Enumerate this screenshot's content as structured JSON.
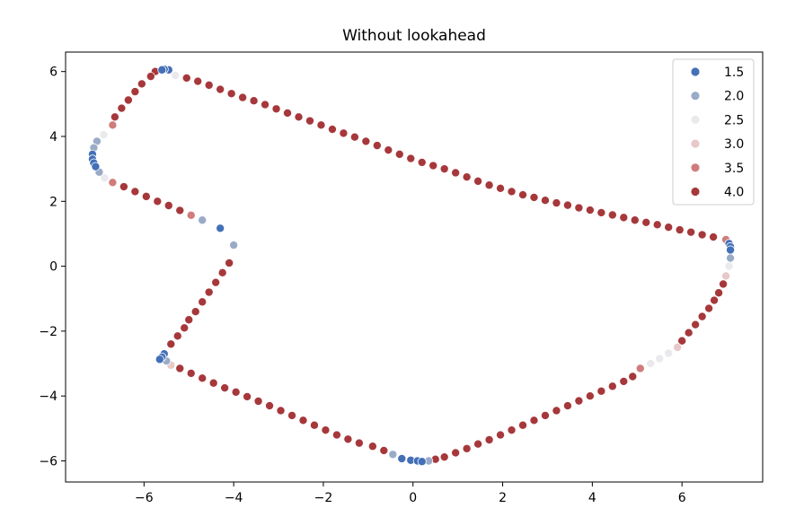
{
  "chart_data": {
    "type": "scatter",
    "title": "Without lookahead",
    "xlabel": "",
    "ylabel": "",
    "xlim": [
      -7.75,
      7.8
    ],
    "ylim": [
      -6.65,
      6.6
    ],
    "xticks": [
      -6,
      -4,
      -2,
      0,
      2,
      4,
      6
    ],
    "yticks": [
      -6,
      -4,
      -2,
      0,
      2,
      4,
      6
    ],
    "xtick_labels": [
      "−6",
      "−4",
      "−2",
      "0",
      "2",
      "4",
      "6"
    ],
    "ytick_labels": [
      "−6",
      "−4",
      "−2",
      "0",
      "2",
      "4",
      "6"
    ],
    "grid": false,
    "legend": {
      "location": "top-right",
      "entries": [
        {
          "label": "1.5",
          "color": "#4470b8"
        },
        {
          "label": "2.0",
          "color": "#9aabc8"
        },
        {
          "label": "2.5",
          "color": "#eaeaee"
        },
        {
          "label": "3.0",
          "color": "#e8c8c8"
        },
        {
          "label": "3.5",
          "color": "#d07b7c"
        },
        {
          "label": "4.0",
          "color": "#a6383b"
        }
      ]
    },
    "series": [
      {
        "name": "1.5",
        "points": [
          [
            -5.45,
            6.05
          ],
          [
            -5.55,
            6.07
          ],
          [
            -5.6,
            6.05
          ],
          [
            -7.15,
            3.45
          ],
          [
            -7.15,
            3.3
          ],
          [
            -7.12,
            3.18
          ],
          [
            -7.08,
            3.07
          ],
          [
            -5.55,
            -2.7
          ],
          [
            -5.6,
            -2.8
          ],
          [
            -5.65,
            -2.87
          ],
          [
            -0.25,
            -5.93
          ],
          [
            -0.05,
            -5.98
          ],
          [
            0.1,
            -6.0
          ],
          [
            0.2,
            -6.02
          ],
          [
            7.05,
            0.7
          ],
          [
            7.08,
            0.6
          ],
          [
            7.08,
            0.5
          ],
          [
            -4.3,
            1.17
          ]
        ]
      },
      {
        "name": "2.0",
        "points": [
          [
            -7.05,
            3.85
          ],
          [
            -7.12,
            3.65
          ],
          [
            -7.0,
            2.9
          ],
          [
            -4.7,
            1.42
          ],
          [
            -4.0,
            0.65
          ],
          [
            -5.5,
            -2.92
          ],
          [
            -0.45,
            -5.8
          ],
          [
            0.35,
            -6.0
          ],
          [
            7.08,
            0.25
          ]
        ]
      },
      {
        "name": "2.5",
        "points": [
          [
            -5.3,
            5.88
          ],
          [
            -6.9,
            4.05
          ],
          [
            -6.88,
            2.72
          ],
          [
            7.05,
            0.0
          ],
          [
            5.7,
            -2.68
          ],
          [
            5.5,
            -2.85
          ],
          [
            5.3,
            -3.0
          ]
        ]
      },
      {
        "name": "3.0",
        "points": [
          [
            -5.4,
            -3.05
          ],
          [
            6.98,
            -0.3
          ],
          [
            5.9,
            -2.5
          ]
        ]
      },
      {
        "name": "3.5",
        "points": [
          [
            -6.7,
            4.35
          ],
          [
            -6.7,
            2.58
          ],
          [
            -4.95,
            1.57
          ],
          [
            6.98,
            0.82
          ],
          [
            5.07,
            -3.15
          ]
        ]
      },
      {
        "name": "4.0",
        "points": [
          [
            -5.75,
            6.0
          ],
          [
            -5.85,
            5.85
          ],
          [
            -6.05,
            5.62
          ],
          [
            -6.2,
            5.38
          ],
          [
            -6.35,
            5.12
          ],
          [
            -6.5,
            4.87
          ],
          [
            -6.65,
            4.6
          ],
          [
            -6.45,
            2.45
          ],
          [
            -6.2,
            2.3
          ],
          [
            -5.95,
            2.15
          ],
          [
            -5.7,
            2.0
          ],
          [
            -5.45,
            1.87
          ],
          [
            -5.2,
            1.72
          ],
          [
            -4.1,
            0.1
          ],
          [
            -4.25,
            -0.2
          ],
          [
            -4.4,
            -0.5
          ],
          [
            -4.55,
            -0.8
          ],
          [
            -4.7,
            -1.1
          ],
          [
            -4.85,
            -1.4
          ],
          [
            -5.0,
            -1.65
          ],
          [
            -5.1,
            -1.9
          ],
          [
            -5.25,
            -2.15
          ],
          [
            -5.4,
            -2.4
          ],
          [
            -5.2,
            -3.15
          ],
          [
            -4.95,
            -3.3
          ],
          [
            -4.7,
            -3.45
          ],
          [
            -4.45,
            -3.6
          ],
          [
            -4.2,
            -3.75
          ],
          [
            -3.95,
            -3.88
          ],
          [
            -3.7,
            -4.02
          ],
          [
            -3.45,
            -4.16
          ],
          [
            -3.2,
            -4.3
          ],
          [
            -2.95,
            -4.45
          ],
          [
            -2.7,
            -4.6
          ],
          [
            -2.45,
            -4.75
          ],
          [
            -2.2,
            -4.9
          ],
          [
            -1.95,
            -5.05
          ],
          [
            -1.7,
            -5.2
          ],
          [
            -1.45,
            -5.33
          ],
          [
            -1.2,
            -5.45
          ],
          [
            -0.9,
            -5.55
          ],
          [
            -0.65,
            -5.68
          ],
          [
            0.5,
            -5.95
          ],
          [
            0.7,
            -5.88
          ],
          [
            0.95,
            -5.75
          ],
          [
            1.2,
            -5.62
          ],
          [
            1.45,
            -5.48
          ],
          [
            1.7,
            -5.35
          ],
          [
            1.95,
            -5.2
          ],
          [
            2.2,
            -5.05
          ],
          [
            2.45,
            -4.9
          ],
          [
            2.7,
            -4.75
          ],
          [
            2.95,
            -4.6
          ],
          [
            3.2,
            -4.45
          ],
          [
            3.45,
            -4.3
          ],
          [
            3.7,
            -4.15
          ],
          [
            3.95,
            -4.0
          ],
          [
            4.2,
            -3.85
          ],
          [
            4.45,
            -3.7
          ],
          [
            4.7,
            -3.55
          ],
          [
            4.9,
            -3.4
          ],
          [
            6.0,
            -2.3
          ],
          [
            6.15,
            -2.05
          ],
          [
            6.3,
            -1.8
          ],
          [
            6.45,
            -1.55
          ],
          [
            6.6,
            -1.3
          ],
          [
            6.72,
            -1.05
          ],
          [
            6.82,
            -0.82
          ],
          [
            6.92,
            -0.55
          ],
          [
            6.7,
            0.9
          ],
          [
            6.45,
            0.97
          ],
          [
            6.2,
            1.05
          ],
          [
            5.95,
            1.12
          ],
          [
            5.7,
            1.2
          ],
          [
            5.45,
            1.28
          ],
          [
            5.2,
            1.35
          ],
          [
            4.95,
            1.42
          ],
          [
            4.7,
            1.5
          ],
          [
            4.45,
            1.58
          ],
          [
            4.2,
            1.65
          ],
          [
            3.95,
            1.73
          ],
          [
            3.7,
            1.8
          ],
          [
            3.45,
            1.88
          ],
          [
            3.2,
            1.95
          ],
          [
            2.95,
            2.03
          ],
          [
            2.7,
            2.12
          ],
          [
            2.45,
            2.2
          ],
          [
            2.2,
            2.3
          ],
          [
            1.95,
            2.4
          ],
          [
            1.7,
            2.5
          ],
          [
            1.45,
            2.62
          ],
          [
            1.2,
            2.75
          ],
          [
            0.95,
            2.88
          ],
          [
            0.7,
            3.0
          ],
          [
            0.45,
            3.1
          ],
          [
            0.2,
            3.2
          ],
          [
            -0.05,
            3.32
          ],
          [
            -0.3,
            3.45
          ],
          [
            -0.55,
            3.58
          ],
          [
            -0.8,
            3.72
          ],
          [
            -1.05,
            3.85
          ],
          [
            -1.3,
            3.98
          ],
          [
            -1.55,
            4.1
          ],
          [
            -1.8,
            4.22
          ],
          [
            -2.05,
            4.35
          ],
          [
            -2.3,
            4.48
          ],
          [
            -2.55,
            4.6
          ],
          [
            -2.8,
            4.72
          ],
          [
            -3.05,
            4.85
          ],
          [
            -3.3,
            4.98
          ],
          [
            -3.55,
            5.1
          ],
          [
            -3.8,
            5.2
          ],
          [
            -4.05,
            5.32
          ],
          [
            -4.3,
            5.45
          ],
          [
            -4.55,
            5.58
          ],
          [
            -4.8,
            5.7
          ],
          [
            -5.05,
            5.8
          ]
        ]
      }
    ]
  }
}
